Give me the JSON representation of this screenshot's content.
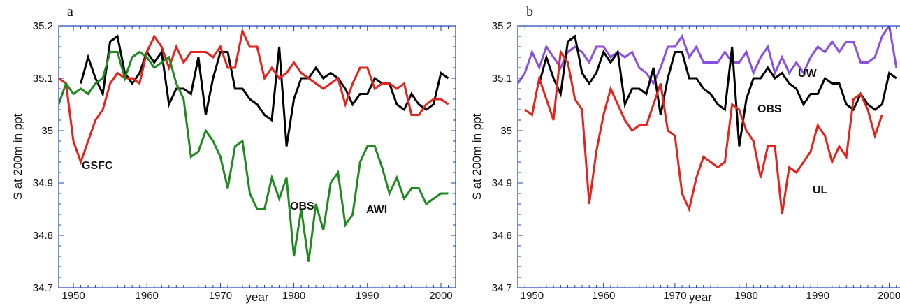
{
  "chart_data": [
    {
      "type": "line",
      "panel_label": "a",
      "xlabel": "year",
      "ylabel": "S at 200m in ppt",
      "xlim": [
        1948,
        2002
      ],
      "ylim": [
        34.7,
        35.2
      ],
      "x_ticks": [
        1950,
        1960,
        1970,
        1980,
        1990,
        2000
      ],
      "y_ticks": [
        34.7,
        34.8,
        34.9,
        35,
        35.1,
        35.2
      ],
      "y_tick_labels": [
        "34.7",
        "34.8",
        "34.9",
        "35",
        "35.1",
        "35.2"
      ],
      "grid": false,
      "colors": {
        "axis": "#1a3fbf",
        "OBS": "#000000",
        "GSFC": "#e5221b",
        "AWI": "#1f8a1f"
      },
      "series": [
        {
          "name": "OBS",
          "x": [
            1951,
            1952,
            1953,
            1954,
            1955,
            1956,
            1957,
            1958,
            1959,
            1960,
            1961,
            1962,
            1963,
            1964,
            1965,
            1966,
            1967,
            1968,
            1969,
            1970,
            1971,
            1972,
            1973,
            1974,
            1975,
            1976,
            1977,
            1978,
            1979,
            1980,
            1981,
            1982,
            1983,
            1984,
            1985,
            1986,
            1987,
            1988,
            1989,
            1990,
            1991,
            1992,
            1993,
            1994,
            1995,
            1996,
            1997,
            1998,
            1999,
            2000,
            2001
          ],
          "values": [
            35.09,
            35.14,
            35.1,
            35.07,
            35.17,
            35.18,
            35.11,
            35.09,
            35.11,
            35.15,
            35.13,
            35.15,
            35.05,
            35.08,
            35.08,
            35.07,
            35.14,
            35.03,
            35.1,
            35.15,
            35.15,
            35.08,
            35.08,
            35.06,
            35.05,
            35.03,
            35.02,
            35.16,
            34.97,
            35.06,
            35.1,
            35.1,
            35.12,
            35.1,
            35.11,
            35.1,
            35.08,
            35.05,
            35.07,
            35.07,
            35.1,
            35.09,
            35.09,
            35.05,
            35.04,
            35.07,
            35.05,
            35.04,
            35.05,
            35.11,
            35.1
          ]
        },
        {
          "name": "GSFC",
          "x": [
            1948,
            1949,
            1950,
            1951,
            1952,
            1953,
            1954,
            1955,
            1956,
            1957,
            1958,
            1959,
            1960,
            1961,
            1962,
            1963,
            1964,
            1965,
            1966,
            1967,
            1968,
            1969,
            1970,
            1971,
            1972,
            1973,
            1974,
            1975,
            1976,
            1977,
            1978,
            1979,
            1980,
            1981,
            1982,
            1983,
            1984,
            1985,
            1986,
            1987,
            1988,
            1989,
            1990,
            1991,
            1992,
            1993,
            1994,
            1995,
            1996,
            1997,
            1998,
            1999,
            2000,
            2001
          ],
          "values": [
            35.1,
            35.09,
            34.98,
            34.94,
            34.98,
            35.02,
            35.04,
            35.09,
            35.11,
            35.1,
            35.1,
            35.09,
            35.15,
            35.18,
            35.16,
            35.12,
            35.16,
            35.13,
            35.15,
            35.15,
            35.15,
            35.14,
            35.16,
            35.12,
            35.12,
            35.19,
            35.16,
            35.16,
            35.1,
            35.12,
            35.1,
            35.11,
            35.13,
            35.11,
            35.1,
            35.09,
            35.08,
            35.09,
            35.1,
            35.05,
            35.09,
            35.12,
            35.12,
            35.08,
            35.09,
            35.09,
            35.08,
            35.09,
            35.03,
            35.03,
            35.05,
            35.06,
            35.06,
            35.05
          ]
        },
        {
          "name": "AWI",
          "x": [
            1948,
            1949,
            1950,
            1951,
            1952,
            1953,
            1954,
            1955,
            1956,
            1957,
            1958,
            1959,
            1960,
            1961,
            1962,
            1963,
            1964,
            1965,
            1966,
            1967,
            1968,
            1969,
            1970,
            1971,
            1972,
            1973,
            1974,
            1975,
            1976,
            1977,
            1978,
            1979,
            1980,
            1981,
            1982,
            1983,
            1984,
            1985,
            1986,
            1987,
            1988,
            1989,
            1990,
            1991,
            1992,
            1993,
            1994,
            1995,
            1996,
            1997,
            1998,
            1999,
            2000,
            2001
          ],
          "values": [
            35.05,
            35.09,
            35.07,
            35.08,
            35.07,
            35.09,
            35.1,
            35.15,
            35.15,
            35.1,
            35.14,
            35.15,
            35.14,
            35.12,
            35.13,
            35.14,
            35.09,
            35.06,
            34.95,
            34.96,
            35,
            34.98,
            34.95,
            34.89,
            34.97,
            34.98,
            34.88,
            34.85,
            34.85,
            34.91,
            34.87,
            34.91,
            34.76,
            34.85,
            34.75,
            34.86,
            34.81,
            34.9,
            34.92,
            34.82,
            34.84,
            34.94,
            34.97,
            34.97,
            34.93,
            34.88,
            34.91,
            34.87,
            34.89,
            34.89,
            34.86,
            34.87,
            34.88,
            34.88
          ]
        }
      ]
    },
    {
      "type": "line",
      "panel_label": "b",
      "xlabel": "year",
      "ylabel": "S at 200m in ppt",
      "xlim": [
        1948,
        2002
      ],
      "ylim": [
        34.7,
        35.2
      ],
      "x_ticks": [
        1950,
        1960,
        1970,
        1980,
        1990,
        2000
      ],
      "y_ticks": [
        34.7,
        34.8,
        34.9,
        35,
        35.1,
        35.2
      ],
      "y_tick_labels": [
        "34.7",
        "34.8",
        "34.9",
        "35",
        "35.1",
        "35.2"
      ],
      "grid": false,
      "colors": {
        "axis": "#1a3fbf",
        "OBS": "#000000",
        "UL": "#e5221b",
        "UW": "#8a4fe0"
      },
      "series": [
        {
          "name": "UW",
          "x": [
            1948,
            1949,
            1950,
            1951,
            1952,
            1953,
            1954,
            1955,
            1956,
            1957,
            1958,
            1959,
            1960,
            1961,
            1962,
            1963,
            1964,
            1965,
            1966,
            1967,
            1968,
            1969,
            1970,
            1971,
            1972,
            1973,
            1974,
            1975,
            1976,
            1977,
            1978,
            1979,
            1980,
            1981,
            1982,
            1983,
            1984,
            1985,
            1986,
            1987,
            1988,
            1989,
            1990,
            1991,
            1992,
            1993,
            1994,
            1995,
            1996,
            1997,
            1998,
            1999,
            2000,
            2001
          ],
          "values": [
            35.09,
            35.11,
            35.15,
            35.12,
            35.16,
            35.14,
            35.12,
            35.15,
            35.16,
            35.15,
            35.13,
            35.16,
            35.16,
            35.14,
            35.15,
            35.14,
            35.15,
            35.12,
            35.11,
            35.09,
            35.12,
            35.16,
            35.16,
            35.18,
            35.14,
            35.16,
            35.13,
            35.13,
            35.13,
            35.15,
            35.13,
            35.13,
            35.15,
            35.11,
            35.14,
            35.16,
            35.11,
            35.14,
            35.11,
            35.13,
            35.11,
            35.14,
            35.16,
            35.15,
            35.17,
            35.15,
            35.17,
            35.17,
            35.13,
            35.13,
            35.14,
            35.18,
            35.2,
            35.12
          ]
        },
        {
          "name": "OBS",
          "x": [
            1951,
            1952,
            1953,
            1954,
            1955,
            1956,
            1957,
            1958,
            1959,
            1960,
            1961,
            1962,
            1963,
            1964,
            1965,
            1966,
            1967,
            1968,
            1969,
            1970,
            1971,
            1972,
            1973,
            1974,
            1975,
            1976,
            1977,
            1978,
            1979,
            1980,
            1981,
            1982,
            1983,
            1984,
            1985,
            1986,
            1987,
            1988,
            1989,
            1990,
            1991,
            1992,
            1993,
            1994,
            1995,
            1996,
            1997,
            1998,
            1999,
            2000,
            2001
          ],
          "values": [
            35.09,
            35.14,
            35.1,
            35.07,
            35.17,
            35.18,
            35.11,
            35.09,
            35.11,
            35.15,
            35.13,
            35.15,
            35.05,
            35.08,
            35.08,
            35.07,
            35.12,
            35.03,
            35.1,
            35.15,
            35.15,
            35.1,
            35.1,
            35.08,
            35.07,
            35.05,
            35.04,
            35.16,
            34.97,
            35.06,
            35.1,
            35.1,
            35.12,
            35.1,
            35.11,
            35.09,
            35.08,
            35.05,
            35.07,
            35.07,
            35.1,
            35.09,
            35.09,
            35.05,
            35.04,
            35.07,
            35.05,
            35.04,
            35.05,
            35.11,
            35.1
          ]
        },
        {
          "name": "UL",
          "x": [
            1949,
            1950,
            1951,
            1952,
            1953,
            1954,
            1955,
            1956,
            1957,
            1958,
            1959,
            1960,
            1961,
            1962,
            1963,
            1964,
            1965,
            1966,
            1967,
            1968,
            1969,
            1970,
            1971,
            1972,
            1973,
            1974,
            1975,
            1976,
            1977,
            1978,
            1979,
            1980,
            1981,
            1982,
            1983,
            1984,
            1985,
            1986,
            1987,
            1988,
            1989,
            1990,
            1991,
            1992,
            1993,
            1994,
            1995,
            1996,
            1997,
            1998,
            1999
          ],
          "values": [
            35.04,
            35.03,
            35.1,
            35.06,
            35.02,
            35.15,
            35.13,
            35.06,
            35.04,
            34.86,
            34.96,
            35.03,
            35.08,
            35.05,
            35.02,
            35,
            35.01,
            35.01,
            35.05,
            35.09,
            35,
            34.99,
            34.88,
            34.85,
            34.91,
            34.95,
            34.94,
            34.93,
            34.94,
            35.05,
            35.04,
            35,
            34.98,
            34.91,
            34.97,
            34.97,
            34.84,
            34.93,
            34.92,
            34.94,
            34.96,
            35.01,
            34.99,
            34.94,
            34.97,
            34.95,
            35.06,
            35.07,
            35.04,
            34.99,
            35.03
          ]
        }
      ]
    }
  ]
}
